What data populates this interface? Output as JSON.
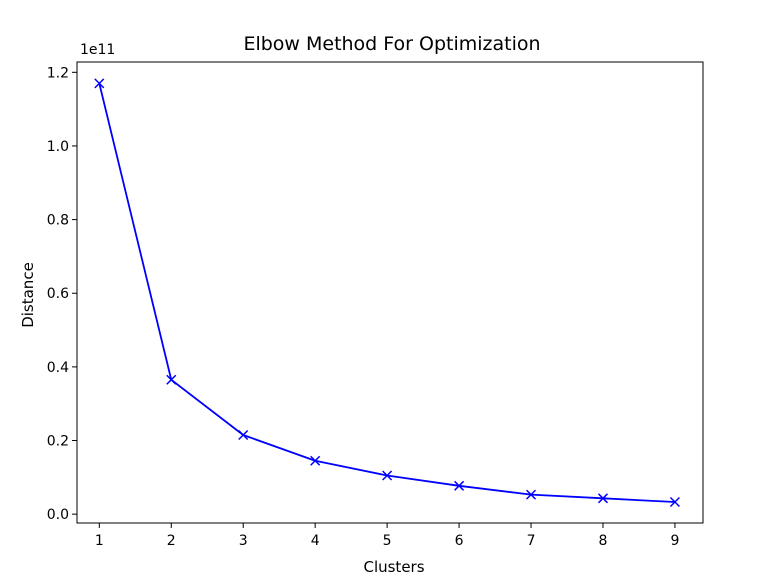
{
  "chart_data": {
    "type": "line",
    "title": "Elbow Method For Optimization",
    "xlabel": "Clusters",
    "ylabel": "Distance",
    "y_offset_label": "1e11",
    "x": [
      1,
      2,
      3,
      4,
      5,
      6,
      7,
      8,
      9
    ],
    "series": [
      {
        "values": [
          1.17,
          0.365,
          0.215,
          0.145,
          0.105,
          0.077,
          0.053,
          0.043,
          0.033
        ],
        "color": "#0000ff",
        "marker": "x"
      }
    ],
    "xlim": [
      0.69,
      9.39
    ],
    "ylim": [
      -0.024,
      1.228
    ],
    "xticks": [
      1,
      2,
      3,
      4,
      5,
      6,
      7,
      8,
      9
    ],
    "xtick_labels": [
      "1",
      "2",
      "3",
      "4",
      "5",
      "6",
      "7",
      "8",
      "9"
    ],
    "yticks": [
      0.0,
      0.2,
      0.4,
      0.6,
      0.8,
      1.0,
      1.2
    ],
    "ytick_labels": [
      "0.0",
      "0.2",
      "0.4",
      "0.6",
      "0.8",
      "1.0",
      "1.2"
    ],
    "grid": false,
    "legend": "none"
  }
}
